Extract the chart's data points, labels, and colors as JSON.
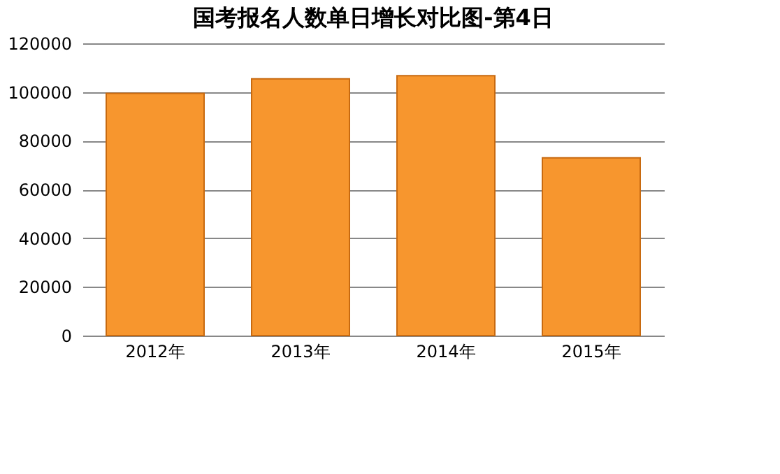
{
  "chart_data": {
    "type": "bar",
    "title": "国考报名人数单日增长对比图-第4日",
    "categories": [
      "2012年",
      "2013年",
      "2014年",
      "2015年"
    ],
    "values": [
      99500,
      105400,
      106700,
      73000
    ],
    "color": "#f7962e",
    "ylim": [
      0,
      120000
    ],
    "yticks": [
      0,
      20000,
      40000,
      60000,
      80000,
      100000,
      120000
    ],
    "grid": "y"
  }
}
